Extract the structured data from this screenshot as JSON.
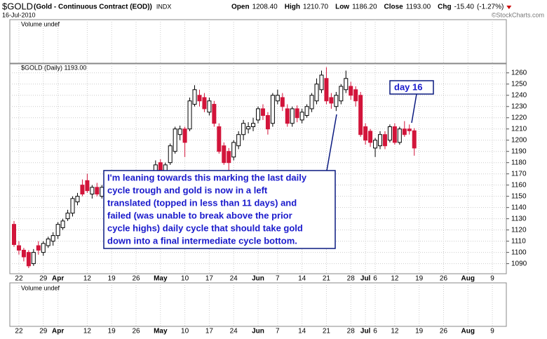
{
  "chart_data": {
    "type": "candlestick",
    "title": "$GOLD",
    "subtitle": "(Gold - Continuous Contract (EOD))",
    "exchange": "INDX",
    "date": "16-Jul-2010",
    "copyright": "©StockCharts.com",
    "header_stats": [
      {
        "name": "Open",
        "value": {
          "value": 1208.4,
          "label": "1208.40"
        }
      },
      {
        "name": "High",
        "value": {
          "value": 1210.7,
          "label": "1210.70"
        }
      },
      {
        "name": "Low",
        "value": {
          "value": 1186.2,
          "label": "1186.20"
        }
      },
      {
        "name": "Close",
        "value": {
          "value": 1193,
          "label": "1193.00"
        }
      },
      {
        "name": "Chg",
        "value": {
          "value": -15.4,
          "label": "-15.40"
        },
        "percent": {
          "value": -1.27,
          "label": "(-1.27%)"
        }
      }
    ],
    "volume_label": "Volume undef",
    "panel_label": "$GOLD (Daily) 1193.00",
    "categories": [
      null,
      "22",
      null,
      null,
      null,
      null,
      "29",
      null,
      null,
      "Apr",
      null,
      null,
      null,
      null,
      null,
      "12",
      null,
      null,
      null,
      null,
      "19",
      null,
      null,
      null,
      null,
      "26",
      null,
      null,
      null,
      null,
      "May",
      null,
      null,
      null,
      null,
      "10",
      null,
      null,
      null,
      null,
      "17",
      null,
      null,
      null,
      null,
      "24",
      null,
      null,
      null,
      null,
      "Jun",
      null,
      null,
      null,
      "7",
      null,
      null,
      null,
      null,
      "14",
      null,
      null,
      null,
      null,
      "21",
      null,
      null,
      null,
      null,
      "28",
      null,
      null,
      "Jul",
      null,
      "6",
      null,
      null,
      null,
      "12",
      null,
      null,
      null,
      null,
      "19",
      null,
      null,
      null,
      null,
      "26",
      null,
      null,
      null,
      null,
      "Aug",
      null,
      null,
      null,
      null,
      "9",
      null,
      null
    ],
    "open": [
      1125,
      1106,
      1102,
      1100,
      1090,
      1106,
      1100,
      1106,
      1110,
      1115,
      1122,
      1130,
      1135,
      1145,
      1160,
      1164,
      1152,
      1158,
      1150,
      1155,
      1160,
      1150,
      1145,
      1142,
      1148,
      1155,
      1152,
      1162,
      1168,
      1168,
      1180,
      1170,
      1180,
      1190,
      1205,
      1210,
      1210,
      1232,
      1240,
      1238,
      1225,
      1232,
      1212,
      1195,
      1190,
      1185,
      1195,
      1205,
      1210,
      1212,
      1218,
      1228,
      1222,
      1215,
      1235,
      1238,
      1228,
      1215,
      1228,
      1218,
      1222,
      1228,
      1235,
      1245,
      1255,
      1238,
      1230,
      1235,
      1245,
      1248,
      1245,
      1240,
      1212,
      1208,
      1193,
      1195,
      1205,
      1200,
      1212,
      1198,
      1210,
      1210,
      1208.4,
      null,
      null,
      null,
      null,
      null,
      null,
      null,
      null,
      null,
      null,
      null,
      null,
      null,
      null,
      null,
      null,
      null,
      null
    ],
    "high": [
      1128,
      1110,
      1104,
      1102,
      1103,
      1110,
      1110,
      1114,
      1118,
      1127,
      1130,
      1138,
      1150,
      1153,
      1165,
      1170,
      1160,
      1162,
      1160,
      1162,
      1163,
      1153,
      1148,
      1150,
      1158,
      1158,
      1164,
      1172,
      1171,
      1182,
      1183,
      1180,
      1197,
      1212,
      1213,
      1212,
      1238,
      1249,
      1245,
      1242,
      1238,
      1235,
      1215,
      1198,
      1193,
      1200,
      1208,
      1218,
      1216,
      1220,
      1230,
      1232,
      1225,
      1242,
      1245,
      1242,
      1232,
      1230,
      1231,
      1228,
      1232,
      1242,
      1255,
      1262,
      1265,
      1242,
      1243,
      1250,
      1262,
      1252,
      1248,
      1243,
      1215,
      1210,
      1202,
      1208,
      1208,
      1214,
      1215,
      1212,
      1217,
      1214,
      1210.7,
      null,
      null,
      null,
      null,
      null,
      null,
      null,
      null,
      null,
      null,
      null,
      null,
      null,
      null,
      null,
      null,
      null,
      null
    ],
    "low": [
      1105,
      1098,
      1092,
      1086,
      1088,
      1098,
      1097,
      1104,
      1106,
      1112,
      1120,
      1128,
      1132,
      1142,
      1150,
      1153,
      1148,
      1150,
      1148,
      1152,
      1148,
      1142,
      1138,
      1140,
      1146,
      1147,
      1150,
      1160,
      1162,
      1166,
      1165,
      1168,
      1178,
      1188,
      1200,
      1185,
      1208,
      1230,
      1230,
      1225,
      1222,
      1212,
      1188,
      1178,
      1165,
      1182,
      1192,
      1200,
      1206,
      1208,
      1215,
      1218,
      1205,
      1212,
      1232,
      1226,
      1212,
      1212,
      1216,
      1215,
      1220,
      1225,
      1232,
      1242,
      1232,
      1228,
      1226,
      1232,
      1242,
      1236,
      1230,
      1203,
      1196,
      1194,
      1185,
      1192,
      1192,
      1198,
      1196,
      1196,
      1203,
      1205,
      1186.2,
      null,
      null,
      null,
      null,
      null,
      null,
      null,
      null,
      null,
      null,
      null,
      null,
      null,
      null,
      null,
      null,
      null,
      null
    ],
    "close": [
      1107,
      1102,
      1096,
      1088,
      1100,
      1102,
      1108,
      1112,
      1115,
      1125,
      1128,
      1135,
      1148,
      1150,
      1152,
      1155,
      1158,
      1152,
      1158,
      1160,
      1150,
      1145,
      1140,
      1148,
      1155,
      1150,
      1162,
      1168,
      1165,
      1178,
      1168,
      1178,
      1195,
      1210,
      1210,
      1198,
      1235,
      1245,
      1235,
      1228,
      1235,
      1215,
      1190,
      1180,
      1180,
      1198,
      1205,
      1215,
      1212,
      1215,
      1228,
      1222,
      1210,
      1240,
      1240,
      1230,
      1215,
      1228,
      1220,
      1225,
      1230,
      1240,
      1250,
      1258,
      1235,
      1233,
      1240,
      1248,
      1255,
      1240,
      1235,
      1205,
      1200,
      1198,
      1200,
      1205,
      1195,
      1212,
      1198,
      1210,
      1205,
      1208.4,
      1193,
      null,
      null,
      null,
      null,
      null,
      null,
      null,
      null,
      null,
      null,
      null,
      null,
      null,
      null,
      null,
      null,
      null,
      null
    ],
    "up_color": "#ffffff",
    "down_color": "#d2143a",
    "ylim": [
      1081,
      1268
    ],
    "yticks": [
      1090,
      1100,
      1110,
      1120,
      1130,
      1140,
      1150,
      1160,
      1170,
      1180,
      1190,
      1200,
      1210,
      1220,
      1230,
      1240,
      1250,
      1260
    ],
    "grid": true,
    "annotations": {
      "note": [
        "I'm leaning towards this marking the last daily",
        "cycle trough and gold is now in a left",
        "translated (topped in less than 11 days) and",
        "failed (was unable to break above the prior",
        "cycle highs) daily cycle that should take gold",
        "down into a final intermediate cycle bottom."
      ],
      "day_label": "day 16"
    }
  }
}
